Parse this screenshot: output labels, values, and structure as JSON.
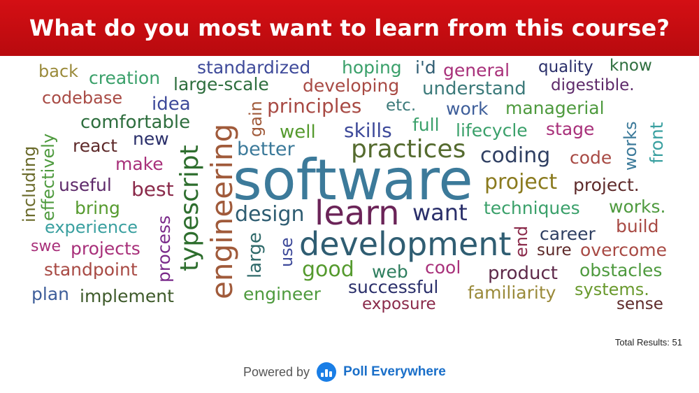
{
  "title": "What do you most want to learn from this course?",
  "total_results": "Total Results: 51",
  "footer": {
    "powered_by": "Powered by",
    "brand": "Poll Everywhere"
  },
  "colors": {
    "header": "#c8102e",
    "brand": "#1a6fc9"
  },
  "words": [
    "software",
    "development",
    "learn",
    "engineering",
    "typescript",
    "practices",
    "design",
    "coding",
    "want",
    "good",
    "project",
    "techniques",
    "process",
    "large",
    "skills",
    "principles",
    "developing",
    "understand",
    "better",
    "standardized",
    "hoping",
    "general",
    "quality",
    "know",
    "digestible.",
    "back",
    "creation",
    "large-scale",
    "i'd",
    "codebase",
    "idea",
    "gain",
    "etc.",
    "work",
    "managerial",
    "comfortable",
    "well",
    "full",
    "lifecycle",
    "stage",
    "react",
    "new",
    "code",
    "make",
    "works",
    "front",
    "effectively",
    "including",
    "useful",
    "best",
    "project.",
    "bring",
    "works.",
    "experience",
    "career",
    "build",
    "end",
    "swe",
    "projects",
    "use",
    "sure",
    "overcome",
    "standpoint",
    "cool",
    "product",
    "obstacles",
    "web",
    "plan",
    "implement",
    "engineer",
    "successful",
    "familiarity",
    "systems.",
    "exposure",
    "sense"
  ]
}
